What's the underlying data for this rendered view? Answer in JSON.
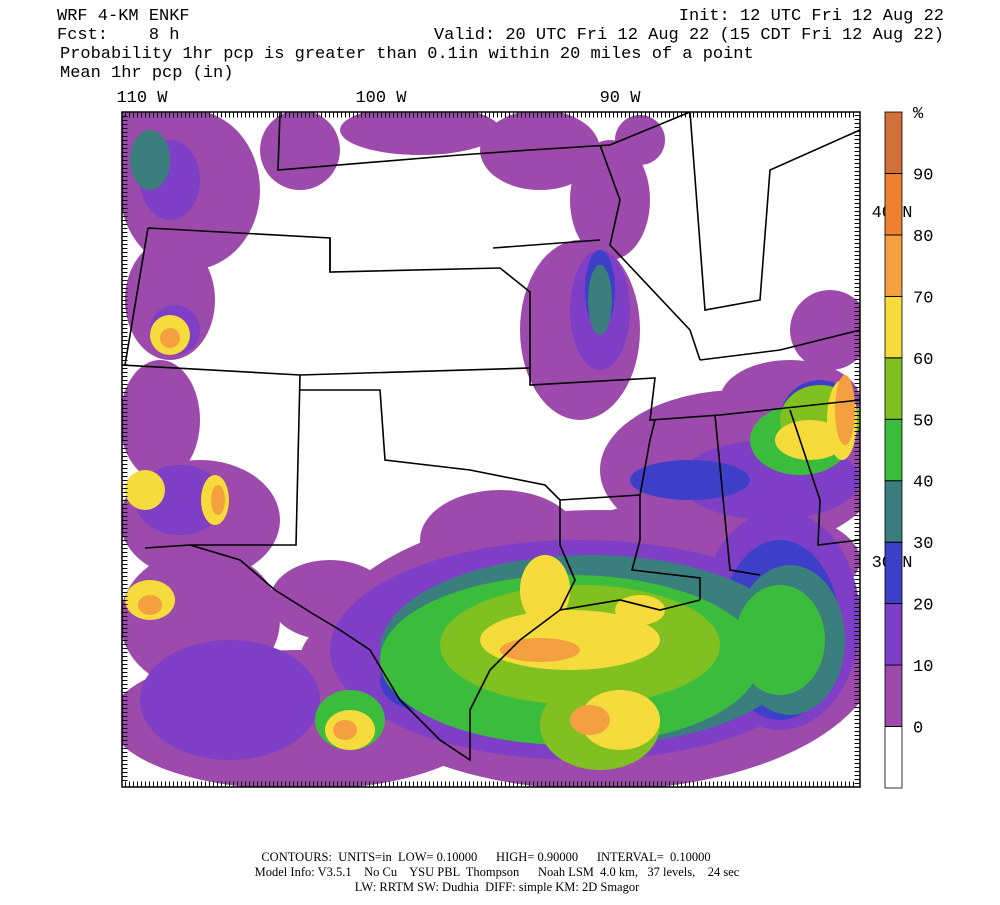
{
  "header": {
    "model": "WRF 4-KM ENKF",
    "init": "Init: 12 UTC Fri 12 Aug 22",
    "forecast": "Fcst:    8 h",
    "valid": "Valid: 20 UTC Fri 12 Aug 22 (15 CDT Fri 12 Aug 22)",
    "field": "Probability 1hr pcp is greater than 0.1in within 20 miles of a point",
    "overlay": "Mean 1hr pcp (in)"
  },
  "map": {
    "lon_labels": [
      "110 W",
      "100 W",
      "90 W"
    ],
    "lat_labels": [
      "40 N",
      "30 N"
    ]
  },
  "colorbar": {
    "unit": "%",
    "ticks": [
      0,
      10,
      20,
      30,
      40,
      50,
      60,
      70,
      80,
      90
    ],
    "colors": [
      "#ffffff",
      "#9c4aab",
      "#7e3fc6",
      "#3d3fc8",
      "#3a7f7e",
      "#3cbc3c",
      "#80c020",
      "#f5dc3c",
      "#f5a040",
      "#ee8030",
      "#d2703a"
    ]
  },
  "footer": {
    "line1": "CONTOURS:  UNITS=in  LOW= 0.10000      HIGH= 0.90000      INTERVAL=  0.10000",
    "line2": "Model Info: V3.5.1    No Cu    YSU PBL  Thompson      Noah LSM  4.0 km,   37 levels,    24 sec",
    "line3": "LW: RRTM SW: Dudhia  DIFF: simple KM: 2D Smagor"
  }
}
